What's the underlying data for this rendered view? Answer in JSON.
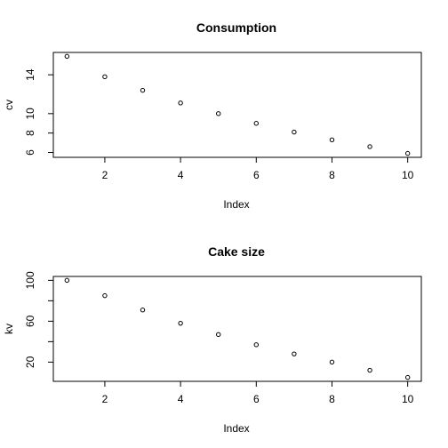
{
  "chart_data": [
    {
      "type": "scatter",
      "title": "Consumption",
      "xlabel": "Index",
      "ylabel": "cv",
      "x": [
        1,
        2,
        3,
        4,
        5,
        6,
        7,
        8,
        9,
        10
      ],
      "y": [
        15.9,
        13.8,
        12.4,
        11.1,
        10.0,
        9.0,
        8.1,
        7.3,
        6.6,
        5.9
      ],
      "xlim": [
        0.64,
        10.36
      ],
      "ylim": [
        5.5,
        16.3
      ],
      "xticks": [
        2,
        4,
        6,
        8,
        10
      ],
      "yticks": [
        6,
        8,
        10,
        14
      ],
      "xtick_labels": [
        "2",
        "4",
        "6",
        "8",
        "10"
      ],
      "ytick_labels": [
        "6",
        "8",
        "10",
        "14"
      ],
      "grid": false,
      "marker": "open-circle",
      "color": "#000000"
    },
    {
      "type": "scatter",
      "title": "Cake size",
      "xlabel": "Index",
      "ylabel": "kv",
      "x": [
        1,
        2,
        3,
        4,
        5,
        6,
        7,
        8,
        9,
        10
      ],
      "y": [
        100,
        85,
        71,
        58,
        47,
        37,
        28,
        20,
        12,
        5
      ],
      "xlim": [
        0.64,
        10.36
      ],
      "ylim": [
        1.2,
        103.8
      ],
      "xticks": [
        2,
        4,
        6,
        8,
        10
      ],
      "yticks": [
        20,
        60,
        100
      ],
      "xtick_labels": [
        "2",
        "4",
        "6",
        "8",
        "10"
      ],
      "ytick_labels": [
        "20",
        "60",
        "100"
      ],
      "yticks_unlabeled": [
        40,
        80
      ],
      "grid": false,
      "marker": "open-circle",
      "color": "#000000"
    }
  ]
}
